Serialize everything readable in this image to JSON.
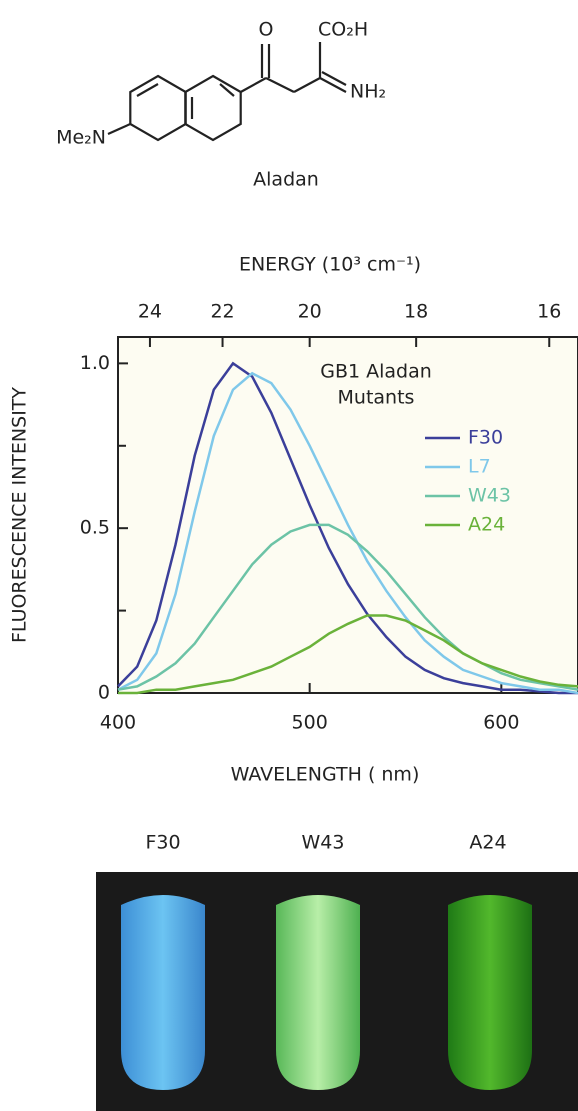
{
  "structure": {
    "labels": [
      "O",
      "CO₂H",
      "NH₂",
      "Me₂N"
    ],
    "name": "Aladan"
  },
  "chart_data": {
    "type": "line",
    "x2label": "ENERGY (10³ cm⁻¹)",
    "x2ticks": [
      24,
      22,
      20,
      18,
      16
    ],
    "xlabel": "WAVELENGTH ( nm)",
    "ylabel": "FLUORESCENCE INTENSITY",
    "annotation": [
      "GB1 Aladan",
      "Mutants"
    ],
    "x": [
      400,
      410,
      420,
      430,
      440,
      450,
      460,
      470,
      480,
      490,
      500,
      510,
      520,
      530,
      540,
      550,
      560,
      570,
      580,
      590,
      600,
      610,
      620,
      630,
      640
    ],
    "series": [
      {
        "name": "F30",
        "color": "#3b3f9a",
        "values": [
          0.02,
          0.08,
          0.22,
          0.45,
          0.72,
          0.92,
          1.0,
          0.96,
          0.85,
          0.71,
          0.57,
          0.44,
          0.33,
          0.24,
          0.17,
          0.11,
          0.07,
          0.045,
          0.03,
          0.02,
          0.01,
          0.01,
          0.005,
          0,
          0
        ]
      },
      {
        "name": "L7",
        "color": "#7fc8ea",
        "values": [
          0.01,
          0.04,
          0.12,
          0.3,
          0.55,
          0.78,
          0.92,
          0.97,
          0.94,
          0.86,
          0.75,
          0.63,
          0.51,
          0.4,
          0.31,
          0.23,
          0.16,
          0.11,
          0.07,
          0.05,
          0.03,
          0.02,
          0.01,
          0.01,
          0
        ]
      },
      {
        "name": "W43",
        "color": "#6cc3a6",
        "values": [
          0.01,
          0.02,
          0.05,
          0.09,
          0.15,
          0.23,
          0.31,
          0.39,
          0.45,
          0.49,
          0.51,
          0.51,
          0.48,
          0.43,
          0.37,
          0.3,
          0.23,
          0.17,
          0.12,
          0.09,
          0.06,
          0.04,
          0.03,
          0.02,
          0.01
        ]
      },
      {
        "name": "A24",
        "color": "#6ab23a",
        "values": [
          0,
          0,
          0.01,
          0.01,
          0.02,
          0.03,
          0.04,
          0.06,
          0.08,
          0.11,
          0.14,
          0.18,
          0.21,
          0.235,
          0.235,
          0.22,
          0.19,
          0.16,
          0.12,
          0.09,
          0.07,
          0.05,
          0.035,
          0.025,
          0.02
        ]
      }
    ],
    "xlim": [
      400,
      640
    ],
    "xticks": [
      400,
      500,
      600
    ],
    "ylim": [
      0,
      1.08
    ],
    "yticks": [
      0,
      0.5,
      {
        "value": 1,
        "label": "1.0"
      }
    ],
    "yminorticks": [
      0.25,
      0.75
    ],
    "legend": "upper right"
  },
  "photo": {
    "labels": [
      "F30",
      "W43",
      "A24"
    ]
  }
}
